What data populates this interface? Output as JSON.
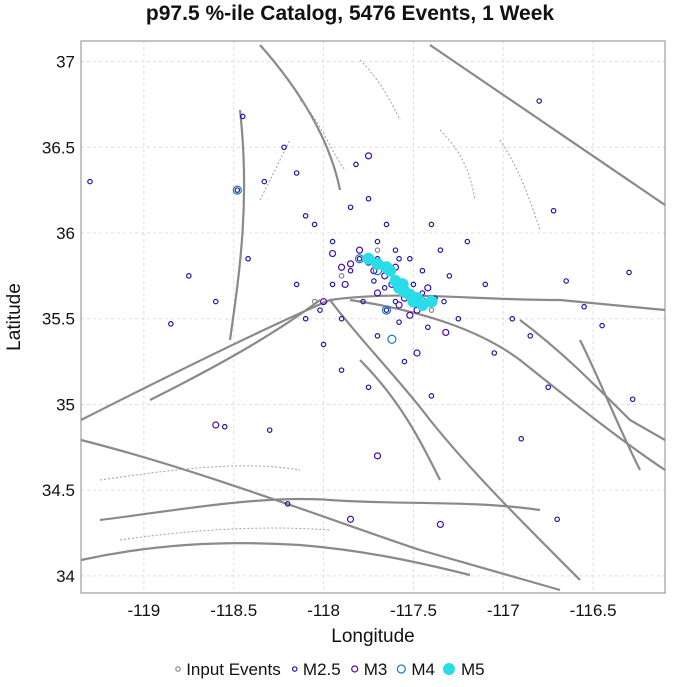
{
  "chart_data": {
    "type": "scatter",
    "title": "p97.5 %-ile Catalog, 5476 Events, 1 Week",
    "xlabel": "Longitude",
    "ylabel": "Latitude",
    "xlim": [
      -119.35,
      -116.1
    ],
    "ylim": [
      33.9,
      37.12
    ],
    "xticks": [
      "-119",
      "-118.5",
      "-118",
      "-117.5",
      "-117",
      "-116.5"
    ],
    "xtick_values": [
      -119,
      -118.5,
      -118,
      -117.5,
      -117,
      -116.5
    ],
    "yticks": [
      "37",
      "36.5",
      "36",
      "35.5",
      "35",
      "34.5",
      "34"
    ],
    "ytick_values": [
      37,
      36.5,
      36,
      35.5,
      35,
      34.5,
      34
    ],
    "grid": true,
    "legend_placement": "bottom-center",
    "series": [
      {
        "name": "Input Events",
        "color": "#888888",
        "style": "hollow-small",
        "points": [
          [
            -118.05,
            35.6
          ],
          [
            -117.9,
            35.75
          ],
          [
            -117.6,
            35.7
          ],
          [
            -117.4,
            35.55
          ],
          [
            -117.7,
            35.9
          ]
        ]
      },
      {
        "name": "M2.5",
        "color": "#1a1aa0",
        "style": "hollow-small",
        "points": [
          [
            -119.3,
            36.3
          ],
          [
            -118.85,
            35.47
          ],
          [
            -118.75,
            35.75
          ],
          [
            -118.6,
            35.6
          ],
          [
            -118.48,
            36.25
          ],
          [
            -118.45,
            36.68
          ],
          [
            -118.42,
            35.85
          ],
          [
            -118.33,
            36.3
          ],
          [
            -118.22,
            36.5
          ],
          [
            -118.15,
            36.35
          ],
          [
            -118.1,
            36.1
          ],
          [
            -118.05,
            36.05
          ],
          [
            -117.95,
            35.95
          ],
          [
            -117.85,
            36.15
          ],
          [
            -117.82,
            36.4
          ],
          [
            -117.75,
            36.2
          ],
          [
            -117.7,
            35.95
          ],
          [
            -117.65,
            36.05
          ],
          [
            -117.58,
            35.85
          ],
          [
            -117.5,
            35.7
          ],
          [
            -117.45,
            35.65
          ],
          [
            -117.4,
            36.05
          ],
          [
            -117.35,
            35.9
          ],
          [
            -117.3,
            35.75
          ],
          [
            -117.25,
            35.5
          ],
          [
            -117.2,
            35.95
          ],
          [
            -117.1,
            35.7
          ],
          [
            -117.05,
            35.3
          ],
          [
            -116.95,
            35.5
          ],
          [
            -116.85,
            35.4
          ],
          [
            -116.8,
            36.77
          ],
          [
            -116.72,
            36.13
          ],
          [
            -116.65,
            35.72
          ],
          [
            -116.55,
            35.57
          ],
          [
            -116.45,
            35.46
          ],
          [
            -116.3,
            35.77
          ],
          [
            -116.28,
            35.03
          ],
          [
            -116.9,
            34.8
          ],
          [
            -116.7,
            34.33
          ],
          [
            -116.75,
            35.1
          ],
          [
            -118.0,
            35.35
          ],
          [
            -117.9,
            35.2
          ],
          [
            -117.75,
            35.1
          ],
          [
            -117.55,
            35.25
          ],
          [
            -117.4,
            35.05
          ],
          [
            -118.3,
            34.85
          ],
          [
            -118.55,
            34.87
          ],
          [
            -118.2,
            34.42
          ],
          [
            -117.6,
            35.6
          ],
          [
            -117.68,
            35.82
          ],
          [
            -117.72,
            35.72
          ],
          [
            -117.62,
            35.78
          ],
          [
            -117.55,
            35.65
          ],
          [
            -117.48,
            35.58
          ],
          [
            -117.8,
            35.85
          ],
          [
            -117.85,
            35.78
          ],
          [
            -117.78,
            35.6
          ],
          [
            -117.65,
            35.55
          ],
          [
            -117.58,
            35.48
          ],
          [
            -117.45,
            35.78
          ],
          [
            -117.95,
            35.7
          ],
          [
            -118.02,
            35.55
          ],
          [
            -117.9,
            35.5
          ],
          [
            -117.7,
            35.4
          ],
          [
            -117.52,
            35.85
          ],
          [
            -118.1,
            35.5
          ],
          [
            -118.15,
            35.7
          ],
          [
            -117.38,
            35.62
          ],
          [
            -117.33,
            35.6
          ],
          [
            -117.42,
            35.45
          ],
          [
            -117.6,
            35.9
          ],
          [
            -117.7,
            35.85
          ],
          [
            -117.66,
            35.68
          ],
          [
            -117.56,
            35.72
          ],
          [
            -117.5,
            35.62
          ]
        ]
      },
      {
        "name": "M3",
        "color": "#4a0ab4",
        "style": "hollow-medium",
        "points": [
          [
            -117.85,
            35.82
          ],
          [
            -117.72,
            35.78
          ],
          [
            -117.62,
            35.7
          ],
          [
            -117.55,
            35.62
          ],
          [
            -117.8,
            35.9
          ],
          [
            -117.48,
            35.55
          ],
          [
            -117.4,
            35.6
          ],
          [
            -117.7,
            35.65
          ],
          [
            -117.9,
            35.8
          ],
          [
            -117.75,
            36.45
          ],
          [
            -117.48,
            35.3
          ],
          [
            -117.32,
            35.42
          ],
          [
            -117.7,
            34.7
          ],
          [
            -117.35,
            34.3
          ],
          [
            -117.85,
            34.33
          ],
          [
            -118.6,
            34.88
          ],
          [
            -117.75,
            35.83
          ],
          [
            -117.66,
            35.75
          ],
          [
            -117.58,
            35.58
          ],
          [
            -117.52,
            35.52
          ],
          [
            -117.88,
            35.7
          ],
          [
            -117.95,
            35.88
          ],
          [
            -117.42,
            35.68
          ],
          [
            -117.6,
            35.8
          ],
          [
            -118.0,
            35.6
          ]
        ]
      },
      {
        "name": "M4",
        "color": "#1a7fb4",
        "style": "hollow-large",
        "points": [
          [
            -117.62,
            35.38
          ],
          [
            -117.7,
            35.78
          ],
          [
            -117.55,
            35.65
          ],
          [
            -117.8,
            35.85
          ],
          [
            -117.45,
            35.6
          ],
          [
            -117.65,
            35.55
          ],
          [
            -118.48,
            36.25
          ]
        ]
      },
      {
        "name": "M5",
        "color": "#29dde8",
        "style": "filled",
        "points": [
          [
            -117.75,
            35.85
          ],
          [
            -117.7,
            35.82
          ],
          [
            -117.63,
            35.78
          ],
          [
            -117.6,
            35.72
          ],
          [
            -117.58,
            35.68
          ],
          [
            -117.55,
            35.66
          ],
          [
            -117.52,
            35.64
          ],
          [
            -117.5,
            35.6
          ],
          [
            -117.48,
            35.62
          ],
          [
            -117.45,
            35.58
          ],
          [
            -117.4,
            35.6
          ],
          [
            -117.65,
            35.8
          ],
          [
            -117.56,
            35.7
          ]
        ]
      }
    ]
  }
}
